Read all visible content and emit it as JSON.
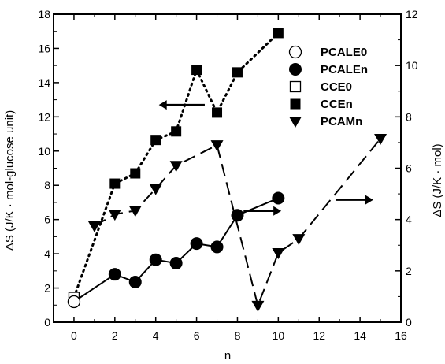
{
  "chart_data": {
    "type": "line",
    "xlabel": "n",
    "ylabel_left": "ΔS (J/K · mol-glucose unit)",
    "ylabel_right": "ΔS (J/K · mol)",
    "xlim": [
      -1,
      16
    ],
    "ylim_left": [
      0,
      18
    ],
    "ylim_right": [
      0,
      12
    ],
    "x_ticks": [
      0,
      2,
      4,
      6,
      8,
      10,
      12,
      14,
      16
    ],
    "y_ticks_left": [
      0,
      2,
      4,
      6,
      8,
      10,
      12,
      14,
      16,
      18
    ],
    "y_ticks_right": [
      0,
      2,
      4,
      6,
      8,
      10,
      12
    ],
    "grid": false,
    "legend_position": "top-right",
    "series": [
      {
        "name": "PCALE0",
        "axis": "left",
        "marker": "circle-open",
        "line": "none",
        "points": [
          [
            0,
            1.2
          ]
        ]
      },
      {
        "name": "PCALEn",
        "axis": "left",
        "marker": "circle-filled",
        "line": "solid",
        "points": [
          [
            0,
            1.2
          ],
          [
            2,
            2.8
          ],
          [
            3,
            2.35
          ],
          [
            4,
            3.65
          ],
          [
            5,
            3.45
          ],
          [
            6,
            4.6
          ],
          [
            7,
            4.4
          ],
          [
            8,
            6.25
          ],
          [
            10,
            7.25
          ]
        ]
      },
      {
        "name": "CCE0",
        "axis": "left",
        "marker": "square-open",
        "line": "none",
        "points": [
          [
            0,
            1.45
          ]
        ]
      },
      {
        "name": "CCEn",
        "axis": "left",
        "marker": "square-filled",
        "line": "dotted",
        "points": [
          [
            0,
            1.45
          ],
          [
            2,
            8.1
          ],
          [
            3,
            8.7
          ],
          [
            4,
            10.65
          ],
          [
            5,
            11.15
          ],
          [
            6,
            14.75
          ],
          [
            7,
            12.25
          ],
          [
            8,
            14.6
          ],
          [
            10,
            16.9
          ]
        ]
      },
      {
        "name": "PCAMn",
        "axis": "right",
        "marker": "triangle-down-filled",
        "line": "dashed",
        "points": [
          [
            1,
            3.75
          ],
          [
            2,
            4.2
          ],
          [
            3,
            4.35
          ],
          [
            4,
            5.2
          ],
          [
            5,
            6.1
          ],
          [
            7,
            6.9
          ],
          [
            9,
            0.65
          ],
          [
            10,
            2.7
          ],
          [
            11,
            3.25
          ],
          [
            15,
            7.15
          ]
        ]
      }
    ]
  }
}
